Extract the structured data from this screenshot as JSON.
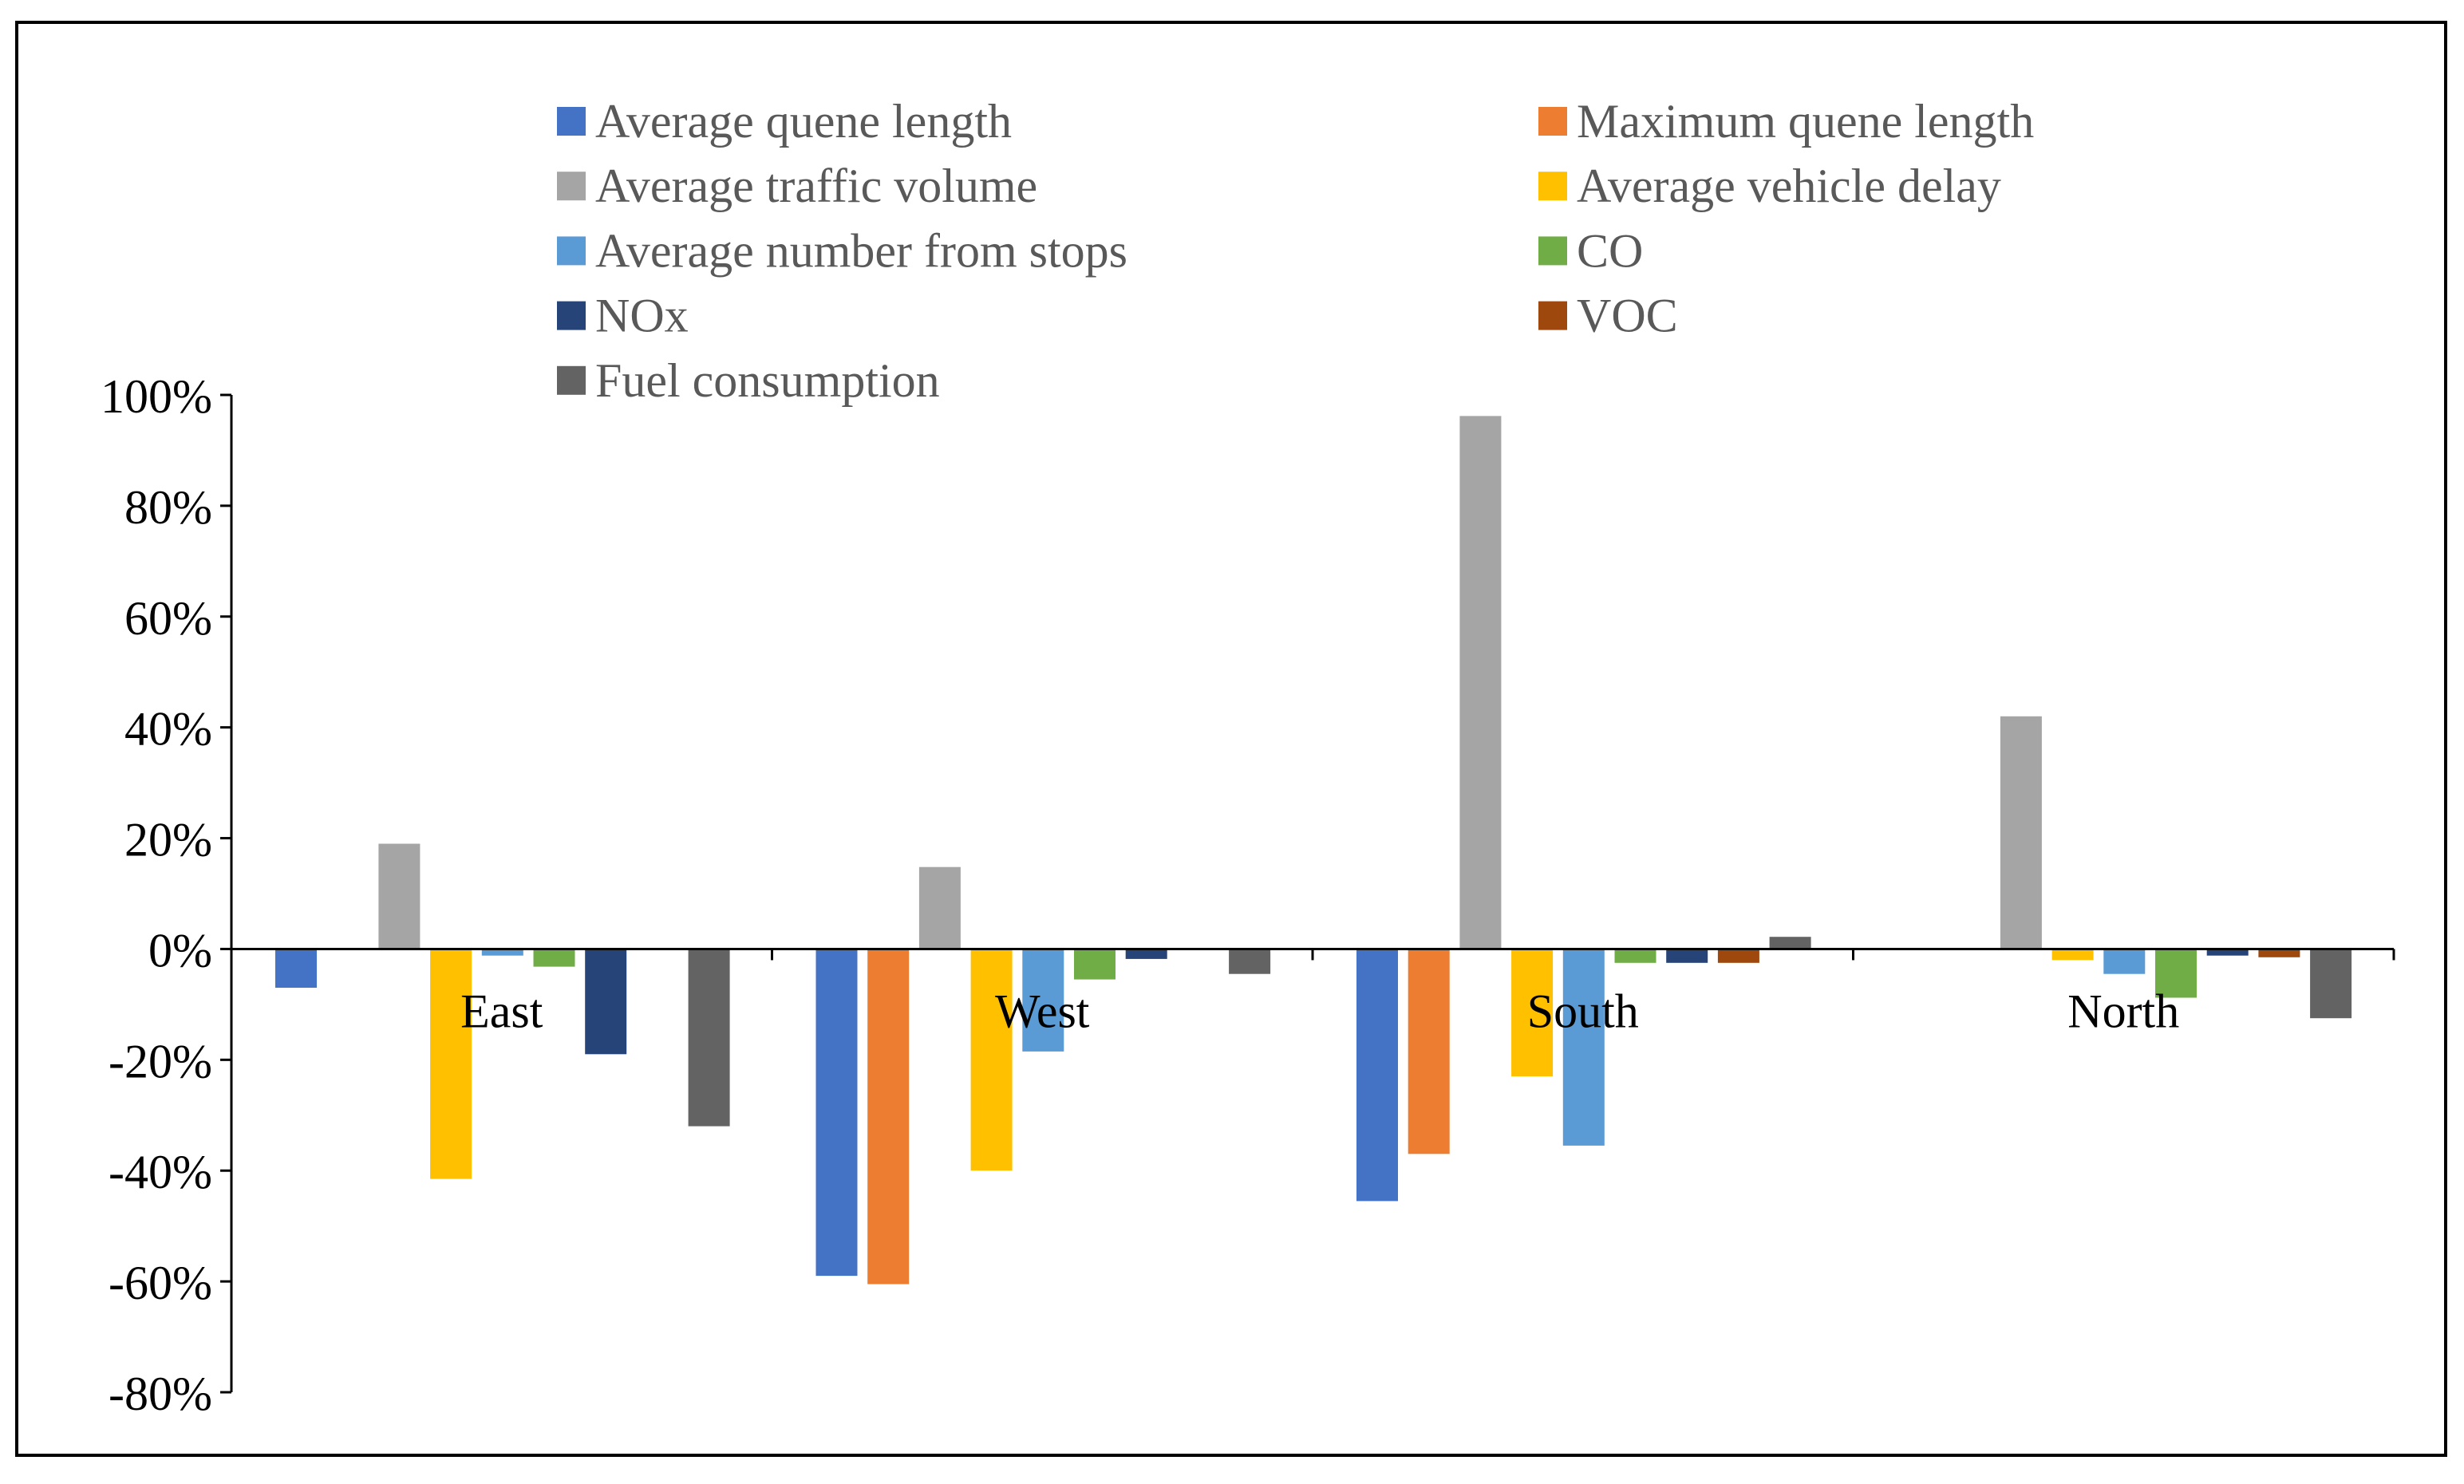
{
  "chart_data": {
    "type": "bar",
    "title": "",
    "xlabel": "",
    "ylabel": "",
    "categories": [
      "East",
      "West",
      "South",
      "North"
    ],
    "ylim": [
      -0.8,
      1.0
    ],
    "yticks": [
      1.0,
      0.8,
      0.6,
      0.4,
      0.2,
      0.0,
      -0.2,
      -0.4,
      -0.6,
      -0.8
    ],
    "ytick_labels": [
      "100%",
      "80%",
      "60%",
      "40%",
      "20%",
      "0%",
      "-20%",
      "-40%",
      "-60%",
      "-80%"
    ],
    "legend_position": "top",
    "grid": false,
    "series": [
      {
        "name": "Average quene length",
        "color": "#4472C4",
        "values": [
          -0.07,
          -0.59,
          -0.455,
          0.0
        ]
      },
      {
        "name": "Maximum quene length",
        "color": "#ED7D31",
        "values": [
          0.0,
          -0.605,
          -0.37,
          0.0
        ]
      },
      {
        "name": "Average traffic volume",
        "color": "#A5A5A5",
        "values": [
          0.19,
          0.148,
          0.962,
          0.42
        ]
      },
      {
        "name": "Average vehicle delay",
        "color": "#FFC000",
        "values": [
          -0.415,
          -0.4,
          -0.23,
          -0.02
        ]
      },
      {
        "name": "Average number from stops",
        "color": "#5B9BD5",
        "values": [
          -0.012,
          -0.185,
          -0.355,
          -0.045
        ]
      },
      {
        "name": "CO",
        "color": "#70AD47",
        "values": [
          -0.032,
          -0.055,
          -0.025,
          -0.088
        ]
      },
      {
        "name": "NOx",
        "color": "#264478",
        "values": [
          -0.19,
          -0.018,
          -0.025,
          -0.012
        ]
      },
      {
        "name": "VOC",
        "color": "#9E480E",
        "values": [
          0.0,
          0.0,
          -0.025,
          -0.015
        ]
      },
      {
        "name": "Fuel consumption",
        "color": "#636363",
        "values": [
          -0.32,
          -0.045,
          0.022,
          -0.125
        ]
      }
    ]
  }
}
